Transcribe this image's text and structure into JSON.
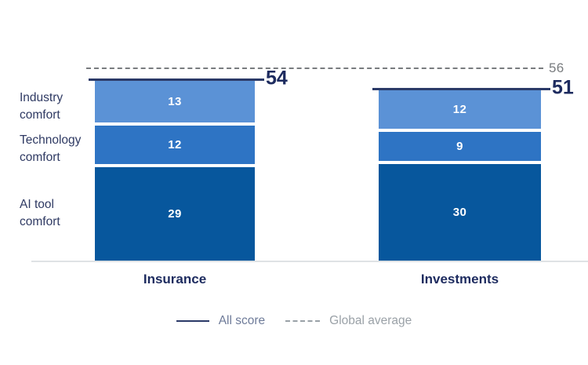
{
  "chart_data": {
    "type": "bar",
    "subtype": "stacked",
    "orientation": "vertical",
    "title": "",
    "categories": [
      "Insurance",
      "Investments"
    ],
    "series": [
      {
        "name": "Industry comfort",
        "values": [
          13,
          12
        ],
        "color": "#5B92D6"
      },
      {
        "name": "Technology comfort",
        "values": [
          12,
          9
        ],
        "color": "#2E74C4"
      },
      {
        "name": "AI tool comfort",
        "values": [
          29,
          30
        ],
        "color": "#07579D"
      }
    ],
    "totals": {
      "name": "All score",
      "values": [
        54,
        51
      ]
    },
    "reference_line": {
      "name": "Global average",
      "value": 56
    },
    "ylim": [
      0,
      56
    ],
    "grid": false,
    "legend_position": "bottom"
  },
  "colors": {
    "navy": "#1D2B5F",
    "line-navy": "#2B3A68",
    "label-navy": "#2F3A63",
    "ref-gray": "#797C7F",
    "legend-slate": "#6E7B99",
    "legend-gray": "#9AA1A7",
    "baseline": "#DFE2E5"
  }
}
